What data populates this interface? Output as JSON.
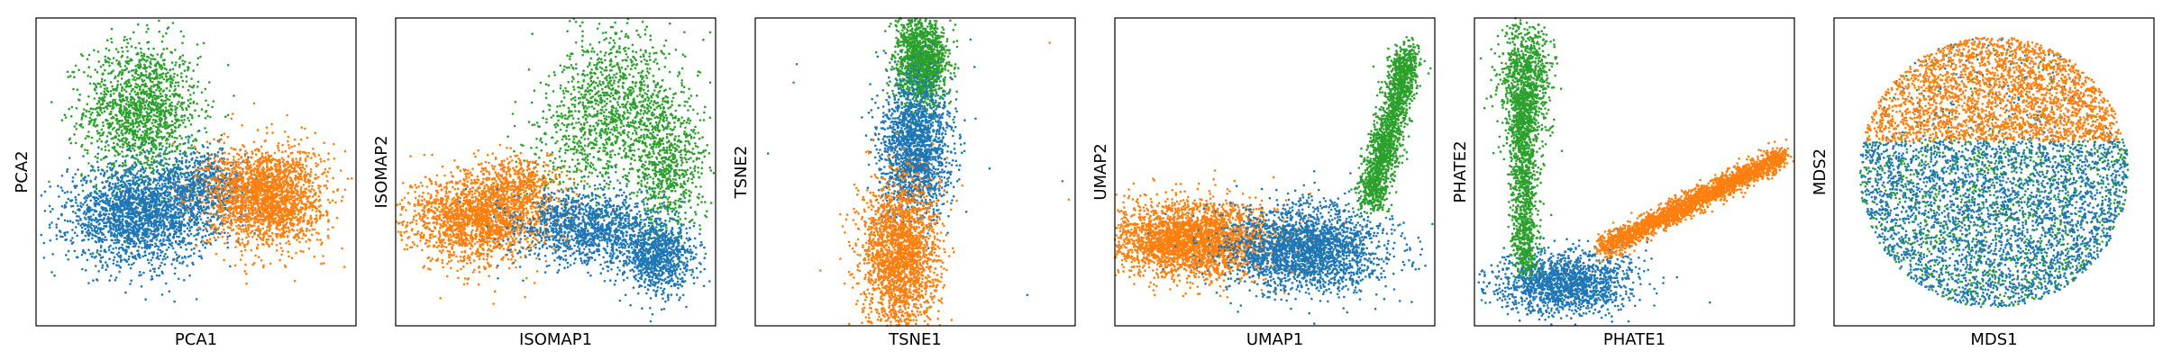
{
  "colors": {
    "series_1": "#1f77b4",
    "series_2": "#ff7f0e",
    "series_3": "#2ca02c"
  },
  "chart_data": [
    {
      "type": "scatter",
      "xlabel": "PCA1",
      "ylabel": "PCA2",
      "grid": false,
      "ticks": false,
      "legend": "none",
      "xlim": [
        0,
        100
      ],
      "ylim": [
        0,
        100
      ],
      "clusters": [
        {
          "color": "series_3",
          "n": 1500,
          "center": [
            33,
            70
          ],
          "spread": [
            9,
            11
          ]
        },
        {
          "color": "series_1",
          "n": 2200,
          "center": [
            32,
            36
          ],
          "spread": [
            11,
            8
          ]
        },
        {
          "color": "series_1",
          "n": 700,
          "center": [
            52,
            45
          ],
          "spread": [
            7,
            6
          ]
        },
        {
          "color": "series_2",
          "n": 2200,
          "center": [
            72,
            42
          ],
          "spread": [
            9,
            8
          ]
        }
      ]
    },
    {
      "type": "scatter",
      "xlabel": "ISOMAP1",
      "ylabel": "ISOMAP2",
      "grid": false,
      "ticks": false,
      "legend": "none",
      "xlim": [
        0,
        100
      ],
      "ylim": [
        0,
        100
      ],
      "clusters": [
        {
          "color": "series_3",
          "n": 1100,
          "center": [
            70,
            72
          ],
          "spread": [
            10,
            12
          ]
        },
        {
          "color": "series_3",
          "n": 700,
          "center": [
            85,
            50
          ],
          "spread": [
            6,
            12
          ]
        },
        {
          "color": "series_3",
          "n": 200,
          "center": [
            55,
            55
          ],
          "spread": [
            8,
            8
          ]
        },
        {
          "color": "series_2",
          "n": 1900,
          "center": [
            26,
            35
          ],
          "spread": [
            11,
            7
          ]
        },
        {
          "color": "series_2",
          "n": 500,
          "center": [
            38,
            45
          ],
          "spread": [
            7,
            5
          ]
        },
        {
          "color": "series_1",
          "n": 1300,
          "center": [
            60,
            32
          ],
          "spread": [
            11,
            6
          ]
        },
        {
          "color": "series_1",
          "n": 900,
          "center": [
            82,
            22
          ],
          "spread": [
            6,
            6
          ]
        }
      ]
    },
    {
      "type": "scatter",
      "xlabel": "TSNE1",
      "ylabel": "TSNE2",
      "grid": false,
      "ticks": false,
      "legend": "none",
      "xlim": [
        0,
        100
      ],
      "ylim": [
        0,
        100
      ],
      "clusters": [
        {
          "color": "series_3",
          "n": 1500,
          "center": [
            52,
            86
          ],
          "spread": [
            4,
            7
          ]
        },
        {
          "color": "series_1",
          "n": 1800,
          "center": [
            50,
            58
          ],
          "spread": [
            5.5,
            11
          ]
        },
        {
          "color": "series_2",
          "n": 2200,
          "center": [
            45,
            22
          ],
          "spread": [
            6,
            13
          ]
        }
      ],
      "outliers": [
        {
          "x": 13,
          "y": 85,
          "color": "series_3"
        },
        {
          "x": 12,
          "y": 79,
          "color": "series_3"
        },
        {
          "x": 4,
          "y": 56,
          "color": "series_1"
        },
        {
          "x": 96,
          "y": 47,
          "color": "series_3"
        },
        {
          "x": 98,
          "y": 41,
          "color": "series_2"
        },
        {
          "x": 85,
          "y": 10,
          "color": "series_1"
        },
        {
          "x": 92,
          "y": 92,
          "color": "series_2"
        }
      ]
    },
    {
      "type": "scatter",
      "xlabel": "UMAP1",
      "ylabel": "UMAP2",
      "grid": false,
      "ticks": false,
      "legend": "none",
      "xlim": [
        0,
        100
      ],
      "ylim": [
        0,
        100
      ],
      "clusters": [
        {
          "color": "series_2",
          "n": 3000,
          "center": [
            24,
            28
          ],
          "spread": [
            13,
            6
          ]
        },
        {
          "color": "series_1",
          "n": 2400,
          "center": [
            60,
            25
          ],
          "spread": [
            12,
            7
          ]
        }
      ],
      "arms": [
        {
          "color": "series_3",
          "n": 1800,
          "from": [
            80,
            40
          ],
          "to": [
            92,
            90
          ],
          "width": 4
        }
      ]
    },
    {
      "type": "scatter",
      "xlabel": "PHATE1",
      "ylabel": "PHATE2",
      "grid": false,
      "ticks": false,
      "legend": "none",
      "xlim": [
        0,
        100
      ],
      "ylim": [
        0,
        100
      ],
      "clusters": [
        {
          "color": "series_3",
          "n": 900,
          "center": [
            16,
            80
          ],
          "spread": [
            4,
            10
          ]
        },
        {
          "color": "series_1",
          "n": 1600,
          "center": [
            28,
            14
          ],
          "spread": [
            11,
            5
          ]
        }
      ],
      "arms": [
        {
          "color": "series_3",
          "n": 1200,
          "from": [
            15,
            75
          ],
          "to": [
            16,
            18
          ],
          "width": 3.5
        },
        {
          "color": "series_2",
          "n": 2400,
          "from": [
            40,
            25
          ],
          "to": [
            96,
            55
          ],
          "width": 3
        }
      ]
    },
    {
      "type": "scatter",
      "xlabel": "MDS1",
      "ylabel": "MDS2",
      "grid": false,
      "ticks": false,
      "legend": "none",
      "xlim": [
        0,
        100
      ],
      "ylim": [
        0,
        100
      ],
      "disc": {
        "center": [
          50,
          50
        ],
        "radius": [
          42,
          44
        ]
      },
      "layers": [
        {
          "color": "series_3",
          "n": 1200,
          "region": "lower"
        },
        {
          "color": "series_1",
          "n": 3000,
          "region": "lower"
        },
        {
          "color": "series_2",
          "n": 2600,
          "region": "upper"
        }
      ]
    }
  ]
}
